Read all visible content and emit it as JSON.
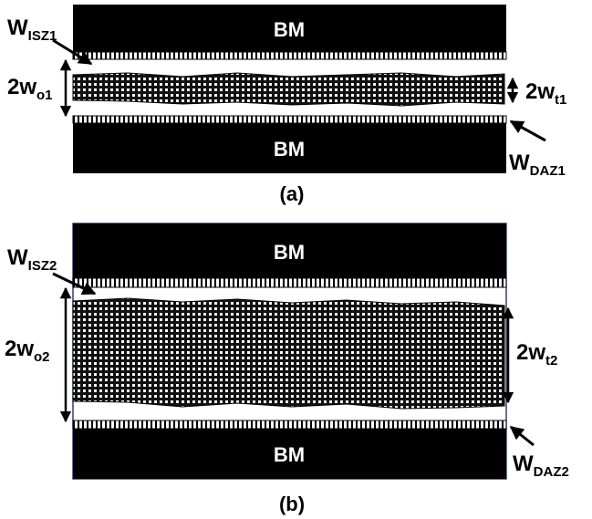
{
  "panel_a": {
    "top_label": "BM",
    "bottom_label": "BM",
    "isz": {
      "main": "W",
      "sub": "ISZ1"
    },
    "daz": {
      "main": "W",
      "sub": "DAZ1"
    },
    "wo": {
      "main": "2w",
      "sub": "o1"
    },
    "wt": {
      "main": "2w",
      "sub": "t1"
    },
    "caption": "(a)"
  },
  "panel_b": {
    "top_label": "BM",
    "bottom_label": "BM",
    "isz": {
      "main": "W",
      "sub": "ISZ2"
    },
    "daz": {
      "main": "W",
      "sub": "DAZ2"
    },
    "wo": {
      "main": "2w",
      "sub": "o2"
    },
    "wt": {
      "main": "2w",
      "sub": "t2"
    },
    "caption": "(b)"
  }
}
